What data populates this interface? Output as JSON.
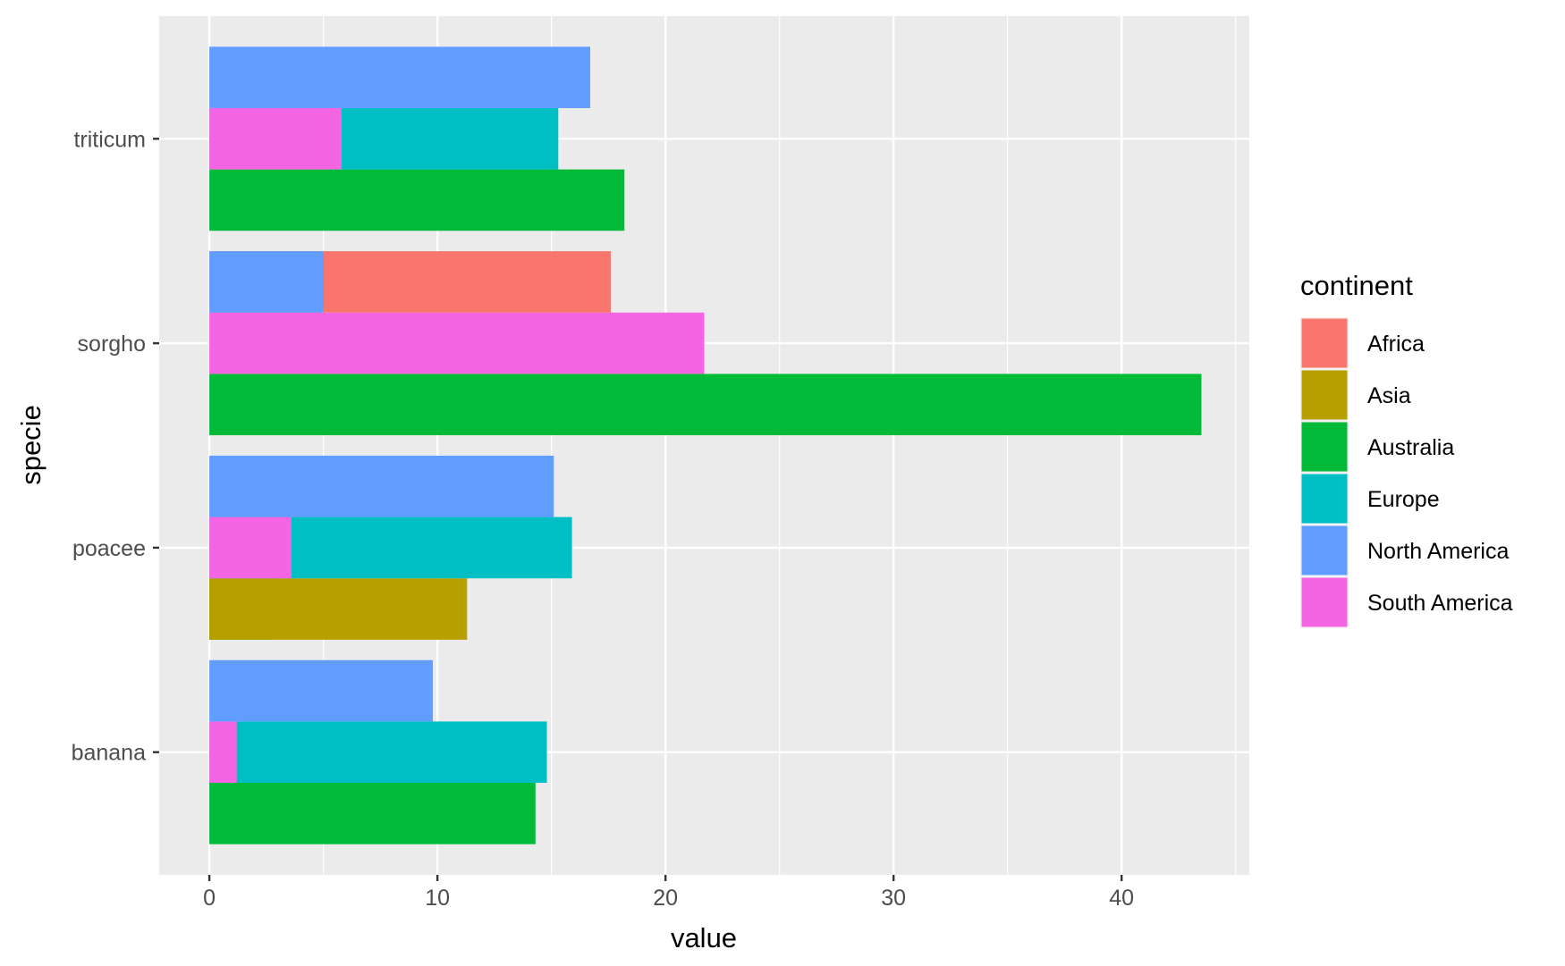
{
  "chart_data": {
    "type": "bar",
    "orientation": "horizontal",
    "xlabel": "value",
    "ylabel": "specie",
    "xlim": [
      -2.2,
      45.6
    ],
    "x_ticks": [
      0,
      10,
      20,
      30,
      40
    ],
    "categories": [
      "banana",
      "poacee",
      "sorgho",
      "triticum"
    ],
    "legend": {
      "title": "continent",
      "placement": "right",
      "entries": [
        "Africa",
        "Asia",
        "Australia",
        "Europe",
        "North America",
        "South America"
      ]
    },
    "colors": {
      "Africa": "#F8766D",
      "Asia": "#B79F00",
      "Australia": "#00BA38",
      "Europe": "#00BFC4",
      "North America": "#619CFF",
      "South America": "#F564E3"
    },
    "layers": [
      {
        "name": "Australia",
        "values": [
          14.3,
          2.8,
          43.5,
          18.2
        ]
      },
      {
        "name": "Asia",
        "values": [
          0,
          11.3,
          0,
          0
        ]
      },
      {
        "name": "Europe",
        "values": [
          14.8,
          15.9,
          0,
          15.3
        ]
      },
      {
        "name": "South America",
        "values": [
          1.2,
          3.6,
          21.7,
          5.8
        ]
      },
      {
        "name": "Africa",
        "values": [
          0,
          0,
          17.6,
          0
        ]
      },
      {
        "name": "North America",
        "values": [
          9.8,
          15.1,
          5.0,
          16.7
        ]
      }
    ],
    "grid": true
  }
}
